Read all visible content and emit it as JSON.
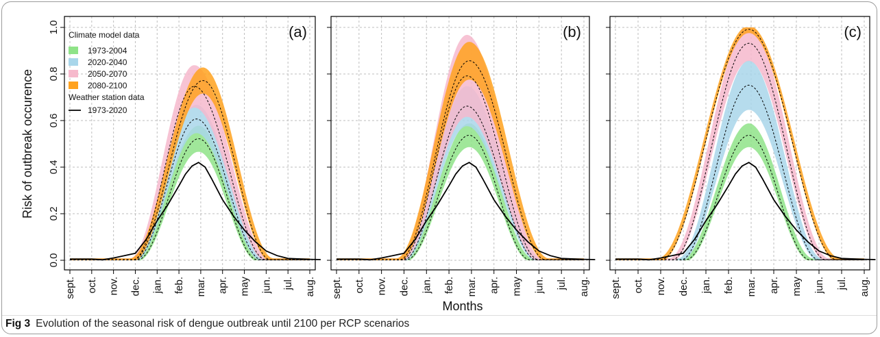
{
  "figure": {
    "label": "Fig 3",
    "caption": "Evolution of the seasonal risk of dengue outbreak until 2100 per RCP scenarios"
  },
  "chart_data": {
    "type": "area",
    "ylabel": "Risk of outbreak occurence",
    "xlabel": "Months",
    "ylim": [
      0,
      1
    ],
    "yticks": [
      0.0,
      0.2,
      0.4,
      0.6,
      0.8,
      1.0
    ],
    "ytick_labels": [
      "0.0",
      "0.2",
      "0.4",
      "0.6",
      "0.8",
      "1.0"
    ],
    "months": [
      "sept.",
      "oct.",
      "nov.",
      "dec.",
      "jan.",
      "feb.",
      "mar.",
      "apr.",
      "may",
      "jun.",
      "jul.",
      "aug."
    ],
    "grid": true,
    "legend": {
      "placement": "top-left of panel (a)",
      "climate_title": "Climate model data",
      "climate_entries": [
        "1973-2004",
        "2020-2040",
        "2050-2070",
        "2080-2100"
      ],
      "station_title": "Weather station data",
      "station_entry": "1973-2020"
    },
    "colors": {
      "1973-2004": "#8fe388",
      "2020-2040": "#a9d6ea",
      "2050-2070": "#f6b9cc",
      "2080-2100": "#ffa21f",
      "station": "#000000",
      "median": "#000000"
    },
    "panels": [
      {
        "label": "(a)",
        "bands": [
          {
            "name": "1973-2004",
            "peak_month": 5.9,
            "peak_low": 0.47,
            "peak_high": 0.57,
            "start_month": 3.1,
            "end_month": 8.6
          },
          {
            "name": "2020-2040",
            "peak_month": 5.8,
            "peak_low": 0.55,
            "peak_high": 0.66,
            "start_month": 3.0,
            "end_month": 8.8
          },
          {
            "name": "2050-2070",
            "peak_month": 5.7,
            "peak_low": 0.66,
            "peak_high": 0.83,
            "start_month": 2.9,
            "end_month": 9.0
          },
          {
            "name": "2080-2100",
            "peak_month": 6.1,
            "peak_low": 0.72,
            "peak_high": 0.82,
            "start_month": 2.9,
            "end_month": 9.2
          }
        ],
        "station_line": [
          {
            "m": 0.0,
            "v": 0.005
          },
          {
            "m": 1.0,
            "v": 0.005
          },
          {
            "m": 1.5,
            "v": 0.002
          },
          {
            "m": 2.0,
            "v": 0.01
          },
          {
            "m": 2.5,
            "v": 0.02
          },
          {
            "m": 3.0,
            "v": 0.03
          },
          {
            "m": 3.5,
            "v": 0.09
          },
          {
            "m": 4.0,
            "v": 0.17
          },
          {
            "m": 4.5,
            "v": 0.24
          },
          {
            "m": 5.0,
            "v": 0.32
          },
          {
            "m": 5.3,
            "v": 0.37
          },
          {
            "m": 5.6,
            "v": 0.405
          },
          {
            "m": 5.9,
            "v": 0.42
          },
          {
            "m": 6.2,
            "v": 0.4
          },
          {
            "m": 6.5,
            "v": 0.35
          },
          {
            "m": 7.0,
            "v": 0.26
          },
          {
            "m": 7.5,
            "v": 0.19
          },
          {
            "m": 8.0,
            "v": 0.13
          },
          {
            "m": 8.5,
            "v": 0.08
          },
          {
            "m": 9.0,
            "v": 0.04
          },
          {
            "m": 9.5,
            "v": 0.02
          },
          {
            "m": 10.0,
            "v": 0.008
          },
          {
            "m": 11.0,
            "v": 0.004
          },
          {
            "m": 11.5,
            "v": 0.003
          }
        ]
      },
      {
        "label": "(b)",
        "bands": [
          {
            "name": "1973-2004",
            "peak_month": 5.9,
            "peak_low": 0.49,
            "peak_high": 0.58,
            "start_month": 3.1,
            "end_month": 8.6
          },
          {
            "name": "2020-2040",
            "peak_month": 5.8,
            "peak_low": 0.58,
            "peak_high": 0.74,
            "start_month": 3.0,
            "end_month": 8.9
          },
          {
            "name": "2050-2070",
            "peak_month": 5.8,
            "peak_low": 0.62,
            "peak_high": 0.96,
            "start_month": 2.9,
            "end_month": 9.0
          },
          {
            "name": "2080-2100",
            "peak_month": 5.9,
            "peak_low": 0.78,
            "peak_high": 0.93,
            "start_month": 2.8,
            "end_month": 9.3
          }
        ],
        "station_line": [
          {
            "m": 0.0,
            "v": 0.005
          },
          {
            "m": 1.0,
            "v": 0.005
          },
          {
            "m": 1.5,
            "v": 0.002
          },
          {
            "m": 2.0,
            "v": 0.01
          },
          {
            "m": 2.5,
            "v": 0.02
          },
          {
            "m": 3.0,
            "v": 0.03
          },
          {
            "m": 3.5,
            "v": 0.09
          },
          {
            "m": 4.0,
            "v": 0.17
          },
          {
            "m": 4.5,
            "v": 0.24
          },
          {
            "m": 5.0,
            "v": 0.32
          },
          {
            "m": 5.3,
            "v": 0.37
          },
          {
            "m": 5.6,
            "v": 0.405
          },
          {
            "m": 5.9,
            "v": 0.42
          },
          {
            "m": 6.2,
            "v": 0.4
          },
          {
            "m": 6.5,
            "v": 0.35
          },
          {
            "m": 7.0,
            "v": 0.26
          },
          {
            "m": 7.5,
            "v": 0.19
          },
          {
            "m": 8.0,
            "v": 0.13
          },
          {
            "m": 8.5,
            "v": 0.08
          },
          {
            "m": 9.0,
            "v": 0.04
          },
          {
            "m": 9.5,
            "v": 0.02
          },
          {
            "m": 10.0,
            "v": 0.008
          },
          {
            "m": 11.0,
            "v": 0.004
          },
          {
            "m": 11.5,
            "v": 0.003
          }
        ]
      },
      {
        "label": "(c)",
        "bands": [
          {
            "name": "1973-2004",
            "peak_month": 5.9,
            "peak_low": 0.49,
            "peak_high": 0.58,
            "start_month": 3.1,
            "end_month": 8.6
          },
          {
            "name": "2020-2040",
            "peak_month": 5.9,
            "peak_low": 0.65,
            "peak_high": 0.85,
            "start_month": 2.9,
            "end_month": 9.0
          },
          {
            "name": "2050-2070",
            "peak_month": 5.9,
            "peak_low": 0.86,
            "peak_high": 1.0,
            "start_month": 2.5,
            "end_month": 9.3
          },
          {
            "name": "2080-2100",
            "peak_month": 5.9,
            "peak_low": 0.98,
            "peak_high": 1.0,
            "start_month": 2.0,
            "end_month": 9.8
          }
        ],
        "station_line": [
          {
            "m": 0.0,
            "v": 0.005
          },
          {
            "m": 1.0,
            "v": 0.005
          },
          {
            "m": 1.5,
            "v": 0.002
          },
          {
            "m": 2.0,
            "v": 0.01
          },
          {
            "m": 2.5,
            "v": 0.02
          },
          {
            "m": 3.0,
            "v": 0.03
          },
          {
            "m": 3.5,
            "v": 0.09
          },
          {
            "m": 4.0,
            "v": 0.17
          },
          {
            "m": 4.5,
            "v": 0.24
          },
          {
            "m": 5.0,
            "v": 0.32
          },
          {
            "m": 5.3,
            "v": 0.37
          },
          {
            "m": 5.6,
            "v": 0.405
          },
          {
            "m": 5.9,
            "v": 0.42
          },
          {
            "m": 6.2,
            "v": 0.4
          },
          {
            "m": 6.5,
            "v": 0.35
          },
          {
            "m": 7.0,
            "v": 0.26
          },
          {
            "m": 7.5,
            "v": 0.19
          },
          {
            "m": 8.0,
            "v": 0.13
          },
          {
            "m": 8.5,
            "v": 0.08
          },
          {
            "m": 9.0,
            "v": 0.04
          },
          {
            "m": 9.5,
            "v": 0.02
          },
          {
            "m": 10.0,
            "v": 0.008
          },
          {
            "m": 11.0,
            "v": 0.004
          },
          {
            "m": 11.5,
            "v": 0.003
          }
        ]
      }
    ]
  }
}
